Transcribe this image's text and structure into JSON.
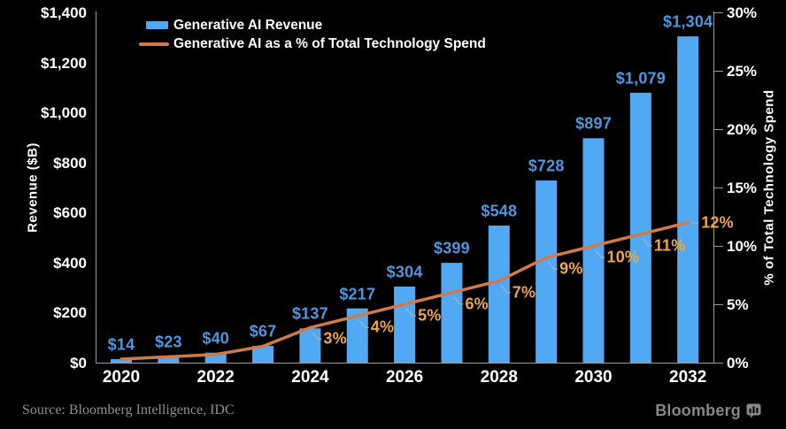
{
  "header": {
    "legend": [
      {
        "label": "Generative AI Revenue",
        "swatch": "bar"
      },
      {
        "label": "Generative AI as a % of Total Technology Spend",
        "swatch": "line"
      }
    ]
  },
  "footer": {
    "source": "Source: Bloomberg Intelligence, IDC",
    "brand": "Bloomberg"
  },
  "colors": {
    "background": "#000000",
    "bar": "#52A9F3",
    "bar_label": "#4C96DD",
    "line": "#CE7A4B",
    "pct_label": "#F2A43F",
    "axis": "#9B9B9B",
    "leader": "#B5B5B5",
    "text": "#FFFFFF"
  },
  "chart_data": {
    "type": "bar+line",
    "title": "",
    "categories": [
      "2020",
      "2021",
      "2022",
      "2023",
      "2024",
      "2025",
      "2026",
      "2027",
      "2028",
      "2029",
      "2030",
      "2031",
      "2032"
    ],
    "series": [
      {
        "name": "Generative AI Revenue",
        "type": "bar",
        "axis": "left",
        "values": [
          14,
          23,
          40,
          67,
          137,
          217,
          304,
          399,
          548,
          728,
          897,
          1079,
          1304
        ],
        "point_labels": [
          "$14",
          "$23",
          "$40",
          "$67",
          "$137",
          "$217",
          "$304",
          "$399",
          "$548",
          "$728",
          "$897",
          "$1,079",
          "$1,304"
        ]
      },
      {
        "name": "Generative AI as a % of Total Technology Spend",
        "type": "line",
        "axis": "right",
        "values": [
          0.3,
          0.5,
          0.7,
          1.4,
          3,
          4,
          5,
          6,
          7,
          9,
          10,
          11,
          12
        ],
        "point_labels": [
          null,
          null,
          null,
          null,
          "3%",
          "4%",
          "5%",
          "6%",
          "7%",
          "9%",
          "10%",
          "11%",
          "12%"
        ]
      }
    ],
    "left_axis": {
      "title": "Revenue ($B)",
      "range": [
        0,
        1400
      ],
      "tick_values": [
        0,
        200,
        400,
        600,
        800,
        1000,
        1200,
        1400
      ],
      "tick_labels": [
        "$0",
        "$200",
        "$400",
        "$600",
        "$800",
        "$1,000",
        "$1,200",
        "$1,400"
      ]
    },
    "right_axis": {
      "title": "% of Total Technology Spend",
      "range": [
        0,
        30
      ],
      "tick_values": [
        0,
        5,
        10,
        15,
        20,
        25,
        30
      ],
      "tick_labels": [
        "0%",
        "5%",
        "10%",
        "15%",
        "20%",
        "25%",
        "30%"
      ]
    },
    "x_axis": {
      "tick_labels": [
        "2020",
        "2022",
        "2024",
        "2026",
        "2028",
        "2030",
        "2032"
      ],
      "tick_indices": [
        0,
        2,
        4,
        6,
        8,
        10,
        12
      ]
    },
    "grid": false,
    "legend_position": "top-left"
  }
}
